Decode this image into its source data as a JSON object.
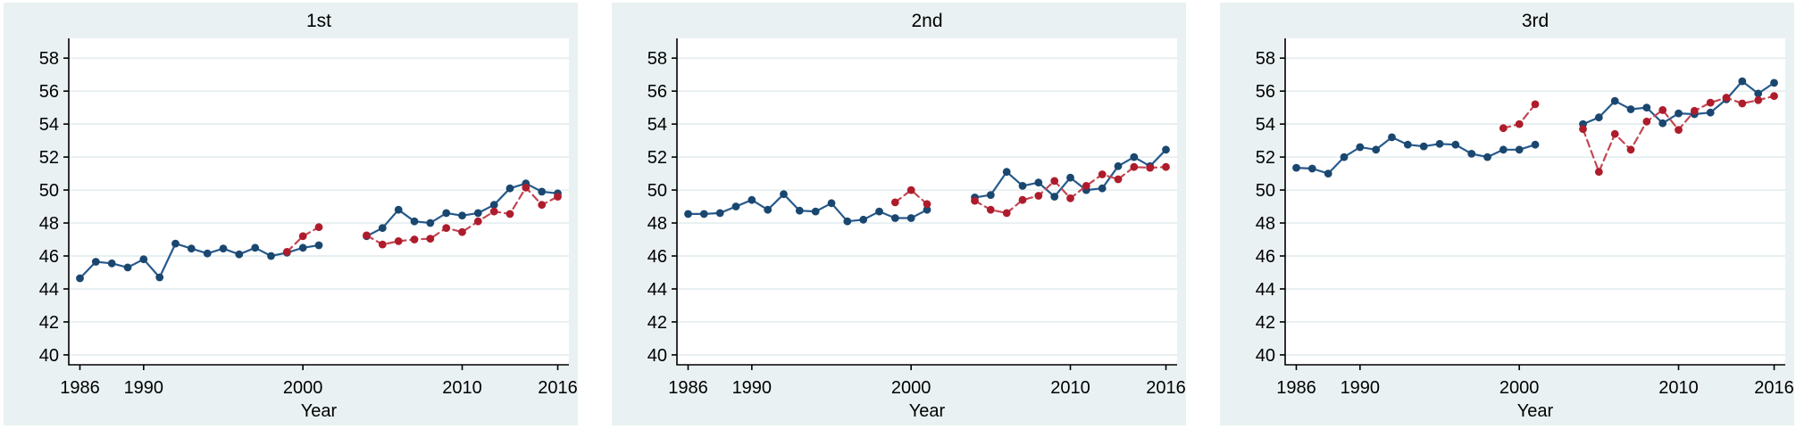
{
  "figure": {
    "kind": "three-panel scatter-line time series (statistical package style)",
    "background_color": "#ffffff",
    "panel_background_color": "#e9f1f2",
    "plot_background_color": "#ffffff",
    "grid_color": "#dfeaec",
    "axis_color": "#000000",
    "panel_titles": [
      "1st",
      "2nd",
      "3rd"
    ],
    "x_axis_label": "Year"
  },
  "chart_data": [
    {
      "type": "line",
      "title": "1st",
      "xlabel": "Year",
      "ylabel": "",
      "xlim": [
        1985.3,
        2016.7
      ],
      "ylim": [
        39.4,
        59.2
      ],
      "x_ticks": [
        1986,
        1990,
        2000,
        2010,
        2016
      ],
      "y_ticks": [
        40,
        42,
        44,
        46,
        48,
        50,
        52,
        54,
        56,
        58
      ],
      "grid": "horizontal",
      "legend": "none",
      "series": [
        {
          "name": "solid-navy-series",
          "marker_color": "#1a476f",
          "line_color": "#275a8c",
          "line_style": "solid",
          "segments": [
            {
              "years": [
                1986,
                1987,
                1988,
                1989,
                1990,
                1991,
                1992,
                1993,
                1994,
                1995,
                1996,
                1997,
                1998,
                1999,
                2000,
                2001
              ],
              "values": [
                44.65,
                45.65,
                45.55,
                45.3,
                45.8,
                44.7,
                46.75,
                46.45,
                46.15,
                46.45,
                46.1,
                46.5,
                46.0,
                46.2,
                46.5,
                46.65
              ]
            },
            {
              "years": [
                2004,
                2005,
                2006,
                2007,
                2008,
                2009,
                2010,
                2011,
                2012,
                2013,
                2014,
                2015,
                2016
              ],
              "values": [
                47.2,
                47.7,
                48.8,
                48.1,
                48.0,
                48.6,
                48.45,
                48.6,
                49.1,
                50.1,
                50.4,
                49.9,
                49.8
              ]
            }
          ]
        },
        {
          "name": "dashed-red-series",
          "marker_color": "#ae1c2c",
          "line_color": "#c34753",
          "line_style": "dashed",
          "segments": [
            {
              "years": [
                1999,
                2000,
                2001
              ],
              "values": [
                46.25,
                47.2,
                47.75
              ]
            },
            {
              "years": [
                2004,
                2005,
                2006,
                2007,
                2008,
                2009,
                2010,
                2011,
                2012,
                2013,
                2014,
                2015,
                2016
              ],
              "values": [
                47.25,
                46.7,
                46.9,
                47.0,
                47.05,
                47.7,
                47.45,
                48.1,
                48.7,
                48.55,
                50.15,
                49.1,
                49.6
              ]
            }
          ]
        }
      ]
    },
    {
      "type": "line",
      "title": "2nd",
      "xlabel": "Year",
      "ylabel": "",
      "xlim": [
        1985.3,
        2016.7
      ],
      "ylim": [
        39.4,
        59.2
      ],
      "x_ticks": [
        1986,
        1990,
        2000,
        2010,
        2016
      ],
      "y_ticks": [
        40,
        42,
        44,
        46,
        48,
        50,
        52,
        54,
        56,
        58
      ],
      "grid": "horizontal",
      "legend": "none",
      "series": [
        {
          "name": "solid-navy-series",
          "marker_color": "#1a476f",
          "line_color": "#275a8c",
          "line_style": "solid",
          "segments": [
            {
              "years": [
                1986,
                1987,
                1988,
                1989,
                1990,
                1991,
                1992,
                1993,
                1994,
                1995,
                1996,
                1997,
                1998,
                1999,
                2000,
                2001
              ],
              "values": [
                48.55,
                48.55,
                48.6,
                49.0,
                49.4,
                48.8,
                49.75,
                48.75,
                48.7,
                49.2,
                48.1,
                48.2,
                48.7,
                48.3,
                48.3,
                48.8
              ]
            },
            {
              "years": [
                2004,
                2005,
                2006,
                2007,
                2008,
                2009,
                2010,
                2011,
                2012,
                2013,
                2014,
                2015,
                2016
              ],
              "values": [
                49.55,
                49.7,
                51.1,
                50.25,
                50.45,
                49.6,
                50.75,
                50.0,
                50.1,
                51.45,
                52.0,
                51.45,
                52.45
              ]
            }
          ]
        },
        {
          "name": "dashed-red-series",
          "marker_color": "#ae1c2c",
          "line_color": "#c34753",
          "line_style": "dashed",
          "segments": [
            {
              "years": [
                1999,
                2000,
                2001
              ],
              "values": [
                49.25,
                50.0,
                49.15
              ]
            },
            {
              "years": [
                2004,
                2005,
                2006,
                2007,
                2008,
                2009,
                2010,
                2011,
                2012,
                2013,
                2014,
                2015,
                2016
              ],
              "values": [
                49.35,
                48.8,
                48.6,
                49.4,
                49.65,
                50.55,
                49.5,
                50.25,
                50.95,
                50.65,
                51.4,
                51.35,
                51.4
              ]
            }
          ]
        }
      ]
    },
    {
      "type": "line",
      "title": "3rd",
      "xlabel": "Year",
      "ylabel": "",
      "xlim": [
        1985.3,
        2016.7
      ],
      "ylim": [
        39.4,
        59.2
      ],
      "x_ticks": [
        1986,
        1990,
        2000,
        2010,
        2016
      ],
      "y_ticks": [
        40,
        42,
        44,
        46,
        48,
        50,
        52,
        54,
        56,
        58
      ],
      "grid": "horizontal",
      "legend": "none",
      "series": [
        {
          "name": "solid-navy-series",
          "marker_color": "#1a476f",
          "line_color": "#275a8c",
          "line_style": "solid",
          "segments": [
            {
              "years": [
                1986,
                1987,
                1988,
                1989,
                1990,
                1991,
                1992,
                1993,
                1994,
                1995,
                1996,
                1997,
                1998,
                1999,
                2000,
                2001
              ],
              "values": [
                51.35,
                51.3,
                51.0,
                52.0,
                52.6,
                52.45,
                53.2,
                52.75,
                52.65,
                52.8,
                52.75,
                52.2,
                52.0,
                52.45,
                52.45,
                52.75
              ]
            },
            {
              "years": [
                2004,
                2005,
                2006,
                2007,
                2008,
                2009,
                2010,
                2011,
                2012,
                2013,
                2014,
                2015,
                2016
              ],
              "values": [
                54.0,
                54.4,
                55.4,
                54.9,
                55.0,
                54.05,
                54.65,
                54.6,
                54.7,
                55.5,
                56.6,
                55.85,
                56.5
              ]
            }
          ]
        },
        {
          "name": "dashed-red-series",
          "marker_color": "#ae1c2c",
          "line_color": "#c34753",
          "line_style": "dashed",
          "segments": [
            {
              "years": [
                1999,
                2000,
                2001
              ],
              "values": [
                53.75,
                54.0,
                55.2
              ]
            },
            {
              "years": [
                2004,
                2005,
                2006,
                2007,
                2008,
                2009,
                2010,
                2011,
                2012,
                2013,
                2014,
                2015,
                2016
              ],
              "values": [
                53.7,
                51.1,
                53.4,
                52.45,
                54.15,
                54.85,
                53.65,
                54.8,
                55.3,
                55.6,
                55.25,
                55.45,
                55.7
              ]
            }
          ]
        }
      ]
    }
  ]
}
